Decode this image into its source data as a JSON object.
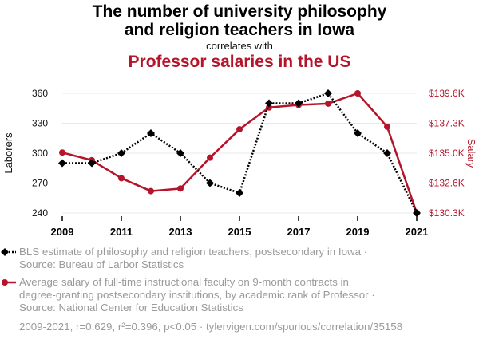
{
  "title_line1": "The number of university philosophy",
  "title_line2": "and religion teachers in Iowa",
  "correlates": "correlates with",
  "subtitle": "Professor salaries in the US",
  "legend": {
    "series1_line1": "BLS estimate of philosophy and religion teachers, postsecondary in Iowa ·",
    "series1_line2": "Source: Bureau of Larbor Statistics",
    "series2_line1": "Average salary of full-time instructional faculty on 9-month contracts in",
    "series2_line2": "degree-granting postsecondary institutions, by academic rank of Professor ·",
    "series2_line3": "Source: National Center for Education Statistics"
  },
  "footer": "2009-2021, r=0.629, r²=0.396, p<0.05 · tylervigen.com/spurious/correlation/35158",
  "colors": {
    "series1": "#000000",
    "series2": "#b5152b",
    "grid": "#e8e8e8"
  },
  "chart_data": {
    "type": "line",
    "x": [
      2009,
      2010,
      2011,
      2012,
      2013,
      2014,
      2015,
      2016,
      2017,
      2018,
      2019,
      2020,
      2021
    ],
    "x_ticks": [
      "2009",
      "2011",
      "2013",
      "2015",
      "2017",
      "2019",
      "2021"
    ],
    "xlim": [
      2009,
      2021
    ],
    "ylabel_left": "Laborers",
    "ylabel_right": "Salary",
    "ylim_left": [
      240,
      360
    ],
    "y_ticks_left": [
      "240",
      "270",
      "300",
      "330",
      "360"
    ],
    "ylim_right": [
      130300,
      139600
    ],
    "y_ticks_right": [
      "$130.3K",
      "$132.6K",
      "$135.0K",
      "$137.3K",
      "$139.6K"
    ],
    "series": [
      {
        "axis": "left",
        "style": "dotted",
        "marker": "diamond",
        "values": [
          290,
          290,
          300,
          320,
          300,
          270,
          260,
          350,
          350,
          360,
          320,
          300,
          240
        ]
      },
      {
        "axis": "right",
        "style": "solid",
        "marker": "circle",
        "values": [
          135000,
          134400,
          133000,
          132000,
          132200,
          134600,
          136800,
          138500,
          138700,
          138800,
          139600,
          137000,
          130300
        ]
      }
    ],
    "grid": true
  }
}
